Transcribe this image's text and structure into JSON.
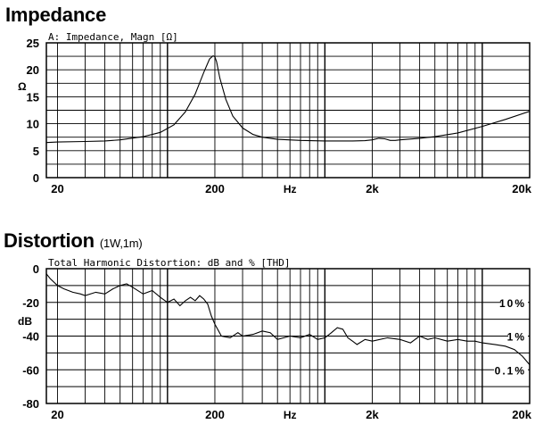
{
  "titles": {
    "impedance": "Impedance",
    "distortion": "Distortion",
    "distortion_note": "(1W,1m)"
  },
  "chart_data": [
    {
      "type": "line",
      "subtitle": "A: Impedance, Magn [Ω]",
      "ylabel": "Ω",
      "xscale": "log",
      "xlim": [
        17,
        20000
      ],
      "ylim": [
        0,
        25
      ],
      "grid": true,
      "x_ticks": [
        {
          "v": 20,
          "label": "20"
        },
        {
          "v": 200,
          "label": "200"
        },
        {
          "v": 2000,
          "label": "2k"
        },
        {
          "v": 20000,
          "label": "20k"
        }
      ],
      "x_unit_label": "Hz",
      "y_ticks": [
        {
          "v": 0,
          "label": "0"
        },
        {
          "v": 5,
          "label": "5"
        },
        {
          "v": 10,
          "label": "10"
        },
        {
          "v": 15,
          "label": "15"
        },
        {
          "v": 20,
          "label": "20"
        },
        {
          "v": 25,
          "label": "25"
        }
      ],
      "series": [
        {
          "x": [
            17,
            20,
            30,
            40,
            50,
            70,
            90,
            110,
            130,
            150,
            170,
            185,
            195,
            200,
            205,
            215,
            235,
            260,
            300,
            350,
            400,
            500,
            700,
            1000,
            1500,
            1800,
            2000,
            2200,
            2400,
            2600,
            2800,
            3000,
            4000,
            5000,
            7000,
            10000,
            14000,
            20000
          ],
          "y": [
            6.5,
            6.6,
            6.7,
            6.8,
            7.0,
            7.6,
            8.4,
            9.8,
            12.2,
            15.5,
            19.5,
            22.0,
            22.6,
            22.4,
            21.5,
            18.5,
            14.5,
            11.4,
            9.2,
            8.0,
            7.5,
            7.1,
            6.9,
            6.8,
            6.8,
            6.85,
            7.0,
            7.3,
            7.2,
            6.9,
            6.9,
            7.0,
            7.3,
            7.6,
            8.3,
            9.5,
            10.8,
            12.3
          ]
        }
      ]
    },
    {
      "type": "line",
      "subtitle": "Total Harmonic Distortion: dB and % [THD]",
      "ylabel": "dB",
      "xscale": "log",
      "xlim": [
        17,
        20000
      ],
      "ylim": [
        -80,
        0
      ],
      "grid": true,
      "x_ticks": [
        {
          "v": 20,
          "label": "20"
        },
        {
          "v": 200,
          "label": "200"
        },
        {
          "v": 2000,
          "label": "2k"
        },
        {
          "v": 20000,
          "label": "20k"
        }
      ],
      "x_unit_label": "Hz",
      "y_ticks": [
        {
          "v": 0,
          "label": "0"
        },
        {
          "v": -20,
          "label": "-20"
        },
        {
          "v": -40,
          "label": "-40"
        },
        {
          "v": -60,
          "label": "-60"
        },
        {
          "v": -80,
          "label": "-80"
        }
      ],
      "percent_markers": [
        {
          "v": -20,
          "label": "10%"
        },
        {
          "v": -40,
          "label": "1%"
        },
        {
          "v": -60,
          "label": "0.1%"
        }
      ],
      "series": [
        {
          "x": [
            17,
            18,
            20,
            22,
            25,
            28,
            30,
            35,
            40,
            45,
            50,
            55,
            60,
            70,
            80,
            90,
            100,
            110,
            120,
            130,
            140,
            150,
            160,
            170,
            180,
            190,
            200,
            220,
            250,
            280,
            300,
            350,
            400,
            450,
            500,
            600,
            700,
            800,
            900,
            1000,
            1100,
            1200,
            1300,
            1400,
            1500,
            1600,
            1800,
            2000,
            2500,
            3000,
            3500,
            4000,
            4500,
            5000,
            6000,
            7000,
            8000,
            9000,
            10000,
            12000,
            14000,
            16000,
            18000,
            20000
          ],
          "y": [
            -3,
            -6,
            -10,
            -12,
            -14,
            -15,
            -16,
            -14,
            -15,
            -12,
            -10,
            -9,
            -11,
            -15,
            -13,
            -17,
            -20,
            -18,
            -22,
            -19,
            -17,
            -19,
            -16,
            -18,
            -21,
            -28,
            -33,
            -40,
            -41,
            -38,
            -40,
            -39,
            -37,
            -38,
            -42,
            -40,
            -41,
            -39,
            -42,
            -41,
            -38,
            -35,
            -36,
            -41,
            -43,
            -45,
            -42,
            -43,
            -41,
            -42,
            -44,
            -40,
            -42,
            -41,
            -43,
            -42,
            -43,
            -43,
            -44,
            -45,
            -46,
            -48,
            -52,
            -57
          ]
        }
      ]
    }
  ]
}
